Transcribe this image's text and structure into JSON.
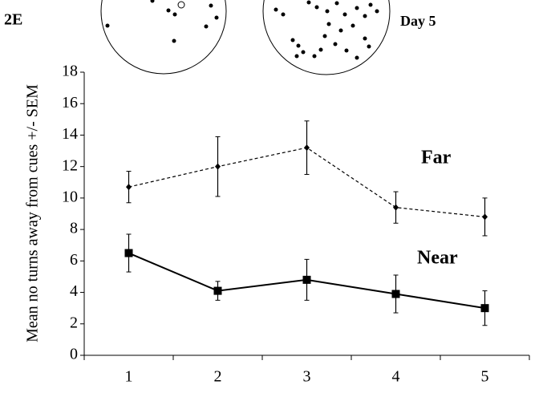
{
  "chart_data": {
    "type": "line",
    "figure_label": "2E",
    "panel_label": "Day 5",
    "y_label": "Mean no turns away from cues +/- SEM",
    "categories": [
      "1",
      "2",
      "3",
      "4",
      "5"
    ],
    "series": [
      {
        "name": "Far",
        "color": "#000000",
        "dashed": true,
        "marker": "diamond",
        "values": [
          10.7,
          12.0,
          13.2,
          9.4,
          8.8
        ],
        "errors": [
          1.0,
          1.9,
          1.7,
          1.0,
          1.2
        ]
      },
      {
        "name": "Near",
        "color": "#000000",
        "dashed": false,
        "marker": "square",
        "values": [
          6.5,
          4.1,
          4.8,
          3.9,
          3.0
        ],
        "errors": [
          1.2,
          0.6,
          1.3,
          1.2,
          1.1
        ]
      }
    ],
    "ylim": [
      0,
      18
    ],
    "yticks": [
      0,
      2,
      4,
      6,
      8,
      10,
      12,
      14,
      16,
      18
    ],
    "grid": false
  }
}
